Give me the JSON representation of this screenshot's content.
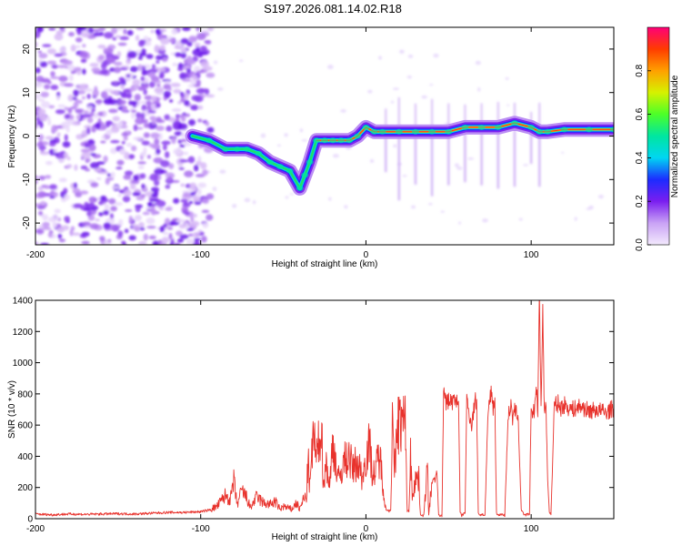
{
  "title": "S197.2026.081.14.02.R18",
  "chart_data": [
    {
      "type": "heatmap",
      "title": "S197.2026.081.14.02.R18",
      "xlabel": "Height of straight line (km)",
      "ylabel": "Frequency (Hz)",
      "xlim": [
        -200,
        150
      ],
      "ylim": [
        -25,
        25
      ],
      "xticks": [
        {
          "value": -200,
          "label": "-200"
        },
        {
          "value": -100,
          "label": "-100"
        },
        {
          "value": 0,
          "label": "0"
        },
        {
          "value": 100,
          "label": "100"
        }
      ],
      "yticks": [
        {
          "value": -20,
          "label": "-20"
        },
        {
          "value": -10,
          "label": "-10"
        },
        {
          "value": 0,
          "label": "0"
        },
        {
          "value": 10,
          "label": "10"
        },
        {
          "value": 20,
          "label": "20"
        }
      ],
      "colorbar": {
        "label": "Normalized spectral amplitude",
        "range": [
          0,
          1
        ],
        "ticks": [
          {
            "value": 0.0,
            "label": "0.0"
          },
          {
            "value": 0.2,
            "label": "0.2"
          },
          {
            "value": 0.4,
            "label": "0.4"
          },
          {
            "value": 0.6,
            "label": "0.6"
          },
          {
            "value": 0.8,
            "label": "0.8"
          }
        ]
      },
      "ridge_track": {
        "x": [
          -105,
          -95,
          -85,
          -78,
          -72,
          -65,
          -58,
          -52,
          -46,
          -40,
          -37,
          -34,
          -30,
          -25,
          -20,
          -15,
          -10,
          -5,
          0,
          5,
          10,
          20,
          30,
          40,
          50,
          60,
          70,
          80,
          90,
          100,
          105,
          110,
          120,
          135,
          150
        ],
        "y": [
          0,
          -1,
          -3,
          -3,
          -3,
          -4,
          -6,
          -7,
          -8,
          -12,
          -9,
          -6,
          -1,
          -1,
          -1,
          -1,
          -1,
          0,
          2,
          1,
          1,
          1,
          1,
          1,
          1,
          2,
          2,
          2,
          3,
          2,
          1,
          1,
          1.5,
          1.5,
          1.5
        ]
      },
      "noise_region_x": [
        -200,
        -100
      ]
    },
    {
      "type": "line",
      "title": "",
      "xlabel": "Height of straight line (km)",
      "ylabel": "SNR (10 * v/v)",
      "xlim": [
        -200,
        150
      ],
      "ylim": [
        0,
        1400
      ],
      "xticks": [
        {
          "value": -200,
          "label": "-200"
        },
        {
          "value": -100,
          "label": "-100"
        },
        {
          "value": 0,
          "label": "0"
        },
        {
          "value": 100,
          "label": "100"
        }
      ],
      "yticks": [
        {
          "value": 0,
          "label": "0"
        },
        {
          "value": 200,
          "label": "200"
        },
        {
          "value": 400,
          "label": "400"
        },
        {
          "value": 600,
          "label": "600"
        },
        {
          "value": 800,
          "label": "800"
        },
        {
          "value": 1000,
          "label": "1000"
        },
        {
          "value": 1200,
          "label": "1200"
        },
        {
          "value": 1400,
          "label": "1400"
        }
      ],
      "series": [
        {
          "name": "SNR",
          "color": "#e8322c",
          "x": [
            -200,
            -190,
            -180,
            -170,
            -160,
            -150,
            -140,
            -130,
            -120,
            -110,
            -100,
            -95,
            -90,
            -85,
            -82,
            -80,
            -78,
            -75,
            -72,
            -70,
            -66,
            -62,
            -58,
            -55,
            -52,
            -50,
            -48,
            -45,
            -42,
            -40,
            -38,
            -36,
            -35,
            -34,
            -33,
            -32,
            -30,
            -28,
            -27,
            -26,
            -25,
            -24,
            -22,
            -20,
            -18,
            -16,
            -14,
            -12,
            -10,
            -8,
            -6,
            -4,
            -2,
            0,
            2,
            4,
            6,
            7,
            8,
            9,
            10,
            12,
            14,
            15,
            16,
            17,
            18,
            19,
            20,
            22,
            24,
            25,
            26,
            27,
            28,
            30,
            32,
            33,
            34,
            35,
            36,
            37,
            38,
            40,
            42,
            43,
            44,
            45,
            46,
            47,
            48,
            50,
            52,
            54,
            56,
            57,
            58,
            59,
            60,
            61,
            62,
            64,
            66,
            67,
            68,
            69,
            70,
            72,
            74,
            76,
            77,
            78,
            79,
            80,
            82,
            84,
            86,
            88,
            89,
            90,
            91,
            92,
            94,
            96,
            98,
            99,
            100,
            101,
            102,
            103,
            104,
            105,
            106,
            107,
            108,
            109,
            110,
            111,
            112,
            114,
            116,
            118,
            120,
            125,
            130,
            135,
            140,
            145,
            150
          ],
          "y": [
            30,
            25,
            30,
            28,
            30,
            32,
            30,
            35,
            40,
            40,
            45,
            55,
            80,
            150,
            120,
            240,
            90,
            180,
            130,
            70,
            140,
            100,
            90,
            110,
            60,
            80,
            70,
            60,
            100,
            60,
            120,
            140,
            380,
            200,
            330,
            560,
            380,
            520,
            620,
            300,
            240,
            380,
            200,
            500,
            340,
            230,
            360,
            380,
            400,
            310,
            360,
            330,
            260,
            400,
            480,
            300,
            280,
            400,
            390,
            350,
            250,
            60,
            50,
            60,
            640,
            300,
            380,
            640,
            620,
            620,
            600,
            40,
            60,
            400,
            150,
            260,
            250,
            30,
            20,
            20,
            150,
            460,
            20,
            240,
            250,
            300,
            20,
            20,
            20,
            800,
            750,
            760,
            750,
            760,
            770,
            40,
            20,
            30,
            40,
            760,
            700,
            600,
            760,
            740,
            40,
            20,
            30,
            20,
            700,
            820,
            720,
            740,
            40,
            20,
            30,
            20,
            660,
            720,
            620,
            700,
            670,
            680,
            60,
            20,
            30,
            20,
            740,
            670,
            700,
            840,
            690,
            1390,
            740,
            1330,
            700,
            690,
            250,
            40,
            30,
            720,
            740,
            710,
            730,
            700,
            720,
            690,
            700,
            680,
            710
          ]
        }
      ]
    }
  ]
}
